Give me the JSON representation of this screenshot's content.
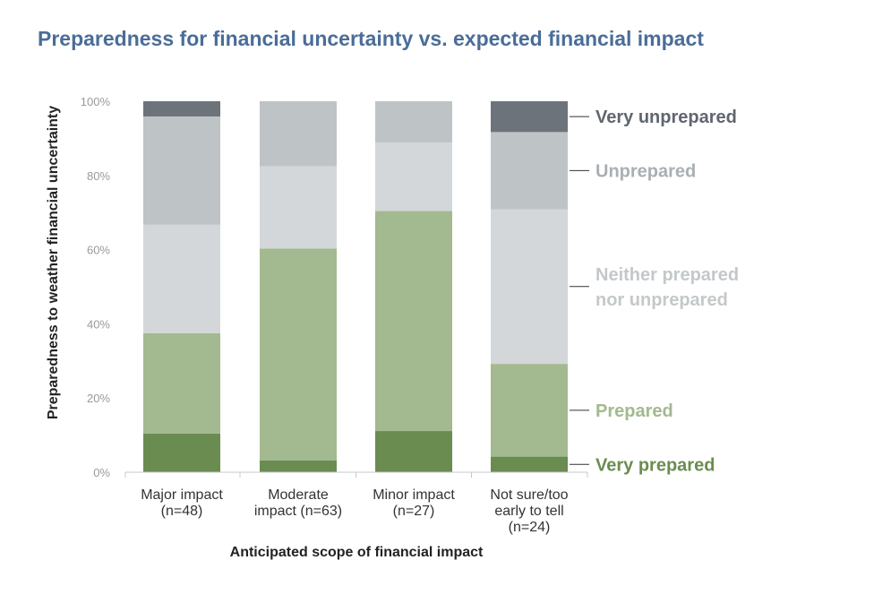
{
  "chart_data": {
    "type": "bar",
    "stacked": true,
    "title": "Preparedness for financial uncertainty vs. expected financial impact",
    "xlabel": "Anticipated scope of financial impact",
    "ylabel": "Preparedness to weather financial uncertainty",
    "ylim": [
      0,
      100
    ],
    "yticks": [
      "0%",
      "20%",
      "40%",
      "60%",
      "80%",
      "100%"
    ],
    "yticks_values": [
      0,
      20,
      40,
      60,
      80,
      100
    ],
    "categories": [
      [
        "Major impact",
        "(n=48)"
      ],
      [
        "Moderate",
        "impact (n=63)"
      ],
      [
        "Minor impact",
        "(n=27)"
      ],
      [
        "Not sure/too",
        "early to tell",
        "(n=24)"
      ]
    ],
    "series": [
      {
        "name": "Very prepared",
        "label_lines": [
          "Very prepared"
        ],
        "color": "#6a8c50",
        "label_color": "#6a8c50",
        "values": [
          10.4,
          3.2,
          11.1,
          4.2
        ]
      },
      {
        "name": "Prepared",
        "label_lines": [
          "Prepared"
        ],
        "color": "#a3b98f",
        "label_color": "#a3b98f",
        "values": [
          27.1,
          57.1,
          59.3,
          25.0
        ]
      },
      {
        "name": "Neither prepared nor unprepared",
        "label_lines": [
          "Neither prepared",
          "nor unprepared"
        ],
        "color": "#d3d7d9",
        "label_color": "#c4c8ca",
        "values": [
          29.2,
          22.2,
          18.5,
          41.7
        ]
      },
      {
        "name": "Unprepared",
        "label_lines": [
          "Unprepared"
        ],
        "color": "#bec4c6",
        "label_color": "#a9afb2",
        "values": [
          29.2,
          17.5,
          11.1,
          20.8
        ]
      },
      {
        "name": "Very unprepared",
        "label_lines": [
          "Very unprepared"
        ],
        "color": "#6c737b",
        "label_color": "#5f666e",
        "values": [
          4.1,
          0,
          0,
          8.3
        ]
      }
    ],
    "legend_placement": "right"
  }
}
